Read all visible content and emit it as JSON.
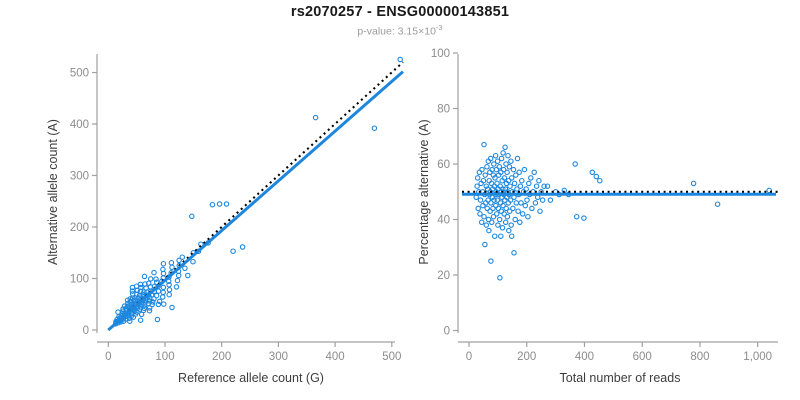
{
  "title": "rs2070257 - ENSG00000143851",
  "subtitle": {
    "text": "p-value: 3.15×10",
    "exponent": "-3"
  },
  "colors": {
    "point": "#1e87dd",
    "fit_line": "#1e87dd",
    "reference_line": "#000000",
    "axis": "#a0a0a0",
    "tick_label": "#8c8c8c",
    "axis_title": "#3d3d3d",
    "title": "#1a1a1a",
    "subtitle": "#9b9b9b",
    "background": "#ffffff"
  },
  "chart_data": {
    "type": "scatter",
    "points_total_pct": [
      [
        25,
        48
      ],
      [
        28,
        52
      ],
      [
        30,
        55
      ],
      [
        32,
        44
      ],
      [
        34,
        50
      ],
      [
        36,
        57
      ],
      [
        38,
        42
      ],
      [
        40,
        47
      ],
      [
        42,
        53
      ],
      [
        44,
        39
      ],
      [
        45,
        58
      ],
      [
        47,
        50
      ],
      [
        48,
        45
      ],
      [
        50,
        54
      ],
      [
        52,
        67
      ],
      [
        52,
        41
      ],
      [
        54,
        49
      ],
      [
        55,
        31
      ],
      [
        56,
        56
      ],
      [
        58,
        46
      ],
      [
        60,
        52
      ],
      [
        60,
        38
      ],
      [
        62,
        59
      ],
      [
        63,
        44
      ],
      [
        64,
        51
      ],
      [
        66,
        47
      ],
      [
        67,
        61
      ],
      [
        68,
        40
      ],
      [
        69,
        36
      ],
      [
        70,
        54
      ],
      [
        71,
        49
      ],
      [
        72,
        57
      ],
      [
        73,
        43
      ],
      [
        74,
        50
      ],
      [
        75,
        62
      ],
      [
        76,
        25
      ],
      [
        76,
        46
      ],
      [
        78,
        53
      ],
      [
        79,
        39
      ],
      [
        80,
        58
      ],
      [
        81,
        48
      ],
      [
        82,
        51
      ],
      [
        83,
        44
      ],
      [
        84,
        56
      ],
      [
        85,
        41
      ],
      [
        86,
        60
      ],
      [
        87,
        47
      ],
      [
        88,
        52
      ],
      [
        89,
        34
      ],
      [
        90,
        55
      ],
      [
        91,
        49
      ],
      [
        92,
        63
      ],
      [
        93,
        45
      ],
      [
        94,
        50
      ],
      [
        95,
        58
      ],
      [
        96,
        42
      ],
      [
        97,
        53
      ],
      [
        98,
        47
      ],
      [
        99,
        61
      ],
      [
        100,
        38
      ],
      [
        101,
        51
      ],
      [
        102,
        44
      ],
      [
        103,
        56
      ],
      [
        104,
        49
      ],
      [
        105,
        59
      ],
      [
        106,
        40
      ],
      [
        107,
        19
      ],
      [
        108,
        52
      ],
      [
        109,
        46
      ],
      [
        110,
        34
      ],
      [
        110,
        57
      ],
      [
        111,
        50
      ],
      [
        112,
        43
      ],
      [
        113,
        62
      ],
      [
        114,
        48
      ],
      [
        115,
        54
      ],
      [
        116,
        37
      ],
      [
        117,
        51
      ],
      [
        118,
        64
      ],
      [
        118,
        45
      ],
      [
        120,
        58
      ],
      [
        121,
        49
      ],
      [
        122,
        42
      ],
      [
        123,
        55
      ],
      [
        124,
        47
      ],
      [
        125,
        66
      ],
      [
        126,
        51
      ],
      [
        127,
        39
      ],
      [
        128,
        60
      ],
      [
        129,
        44
      ],
      [
        130,
        53
      ],
      [
        131,
        48
      ],
      [
        132,
        57
      ],
      [
        133,
        41
      ],
      [
        134,
        50
      ],
      [
        135,
        63
      ],
      [
        136,
        46
      ],
      [
        137,
        54
      ],
      [
        138,
        36
      ],
      [
        139,
        49
      ],
      [
        140,
        59
      ],
      [
        141,
        43
      ],
      [
        142,
        52
      ],
      [
        144,
        47
      ],
      [
        145,
        61
      ],
      [
        146,
        38
      ],
      [
        148,
        34
      ],
      [
        148,
        55
      ],
      [
        150,
        50
      ],
      [
        152,
        44
      ],
      [
        154,
        58
      ],
      [
        156,
        28
      ],
      [
        156,
        48
      ],
      [
        158,
        53
      ],
      [
        160,
        40
      ],
      [
        162,
        56
      ],
      [
        164,
        46
      ],
      [
        166,
        51
      ],
      [
        168,
        62
      ],
      [
        170,
        43
      ],
      [
        172,
        49
      ],
      [
        174,
        57
      ],
      [
        176,
        39
      ],
      [
        178,
        52
      ],
      [
        180,
        46
      ],
      [
        183,
        54
      ],
      [
        186,
        42
      ],
      [
        189,
        50
      ],
      [
        192,
        58
      ],
      [
        195,
        45
      ],
      [
        198,
        51
      ],
      [
        201,
        47
      ],
      [
        204,
        41
      ],
      [
        207,
        53
      ],
      [
        210,
        49
      ],
      [
        214,
        55
      ],
      [
        218,
        44
      ],
      [
        222,
        50
      ],
      [
        226,
        57
      ],
      [
        230,
        46
      ],
      [
        234,
        52
      ],
      [
        238,
        48
      ],
      [
        242,
        54
      ],
      [
        246,
        43
      ],
      [
        250,
        50
      ],
      [
        255,
        47
      ],
      [
        260,
        52
      ],
      [
        272,
        52
      ],
      [
        282,
        47
      ],
      [
        300,
        50
      ],
      [
        312,
        49
      ],
      [
        330,
        50.5
      ],
      [
        345,
        49
      ],
      [
        368,
        60
      ],
      [
        373,
        41
      ],
      [
        398,
        40.5
      ],
      [
        427,
        57
      ],
      [
        441,
        55.5
      ],
      [
        453,
        54
      ],
      [
        778,
        53
      ],
      [
        861,
        45.5
      ],
      [
        1040,
        50.5
      ]
    ],
    "panels": [
      {
        "id": "ref-vs-alt",
        "xlabel": "Reference allele count (G)",
        "ylabel": "Alternative allele count (A)",
        "xlim": [
          0,
          520
        ],
        "ylim": [
          0,
          535
        ],
        "xticks": [
          0,
          100,
          200,
          300,
          400,
          500
        ],
        "xtick_labels": [
          "0",
          "100",
          "200",
          "300",
          "400",
          "500"
        ],
        "yticks": [
          0,
          100,
          200,
          300,
          400,
          500
        ],
        "ytick_labels": [
          "0",
          "100",
          "200",
          "300",
          "400",
          "500"
        ],
        "derive": "ref_alt",
        "lines": [
          {
            "kind": "identity-dotted",
            "slope": 1
          },
          {
            "kind": "fit-solid",
            "slope": 0.965
          }
        ]
      },
      {
        "id": "reads-vs-pct",
        "xlabel": "Total number of reads",
        "ylabel": "Percentage alternative (A)",
        "xlim": [
          0,
          1085
        ],
        "ylim": [
          0,
          100
        ],
        "xticks": [
          0,
          200,
          400,
          600,
          800,
          1000
        ],
        "xtick_labels": [
          "0",
          "200",
          "400",
          "600",
          "800",
          "1,000"
        ],
        "yticks": [
          0,
          20,
          40,
          60,
          80,
          100
        ],
        "ytick_labels": [
          "0",
          "20",
          "40",
          "60",
          "80",
          "100"
        ],
        "derive": "total_pct",
        "lines": [
          {
            "kind": "hline-dotted",
            "y": 50
          },
          {
            "kind": "hline-solid",
            "y": 49.1
          }
        ]
      }
    ]
  }
}
